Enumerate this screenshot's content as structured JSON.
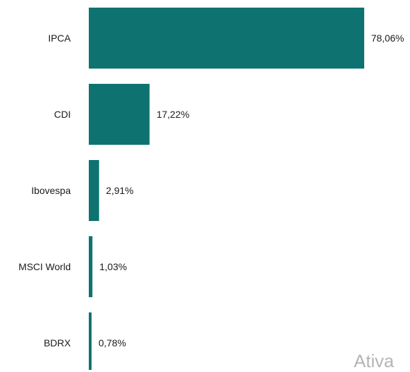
{
  "chart_data": {
    "type": "bar",
    "orientation": "horizontal",
    "categories": [
      "IPCA",
      "CDI",
      "Ibovespa",
      "MSCI World",
      "BDRX"
    ],
    "values": [
      78.06,
      17.22,
      2.91,
      1.03,
      0.78
    ],
    "value_labels": [
      "78,06%",
      "17,22%",
      "2,91%",
      "1,03%",
      "0,78%"
    ],
    "title": "",
    "xlabel": "",
    "ylabel": "",
    "xlim": [
      0,
      78.06
    ],
    "grid": false,
    "legend": "none",
    "bar_color": "#0e7370"
  },
  "watermark_text": "Ativa"
}
